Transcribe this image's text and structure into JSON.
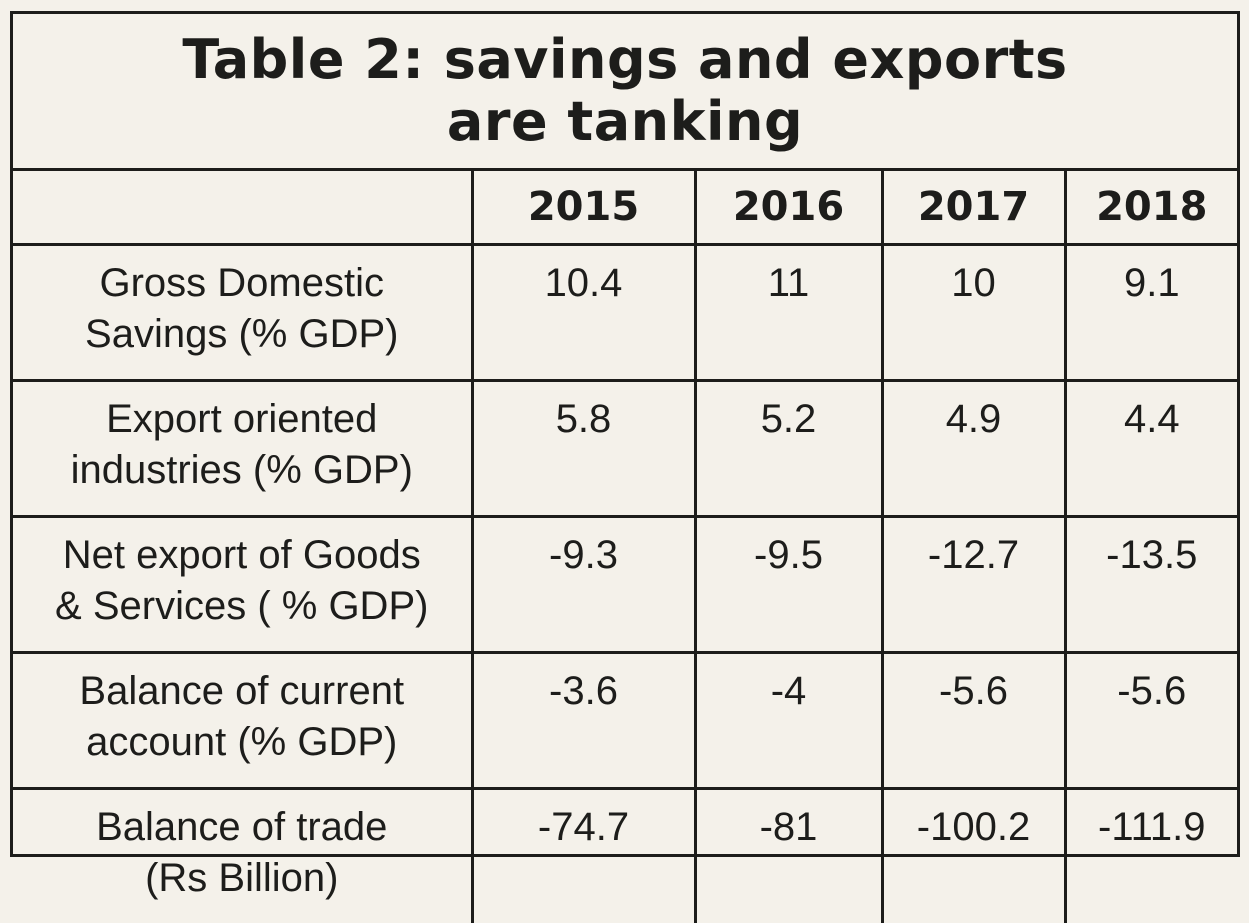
{
  "chart_data": {
    "type": "table",
    "title_lines": [
      "Table 2: savings and exports",
      "are tanking"
    ],
    "columns": [
      "",
      "2015",
      "2016",
      "2017",
      "2018"
    ],
    "rows": [
      {
        "label_lines": [
          "Gross Domestic",
          "Savings (% GDP)"
        ],
        "values": [
          "10.4",
          "11",
          "10",
          "9.1"
        ]
      },
      {
        "label_lines": [
          "Export oriented",
          "industries (% GDP)"
        ],
        "values": [
          "5.8",
          "5.2",
          "4.9",
          "4.4"
        ]
      },
      {
        "label_lines": [
          "Net export of Goods",
          "& Services ( % GDP)"
        ],
        "values": [
          "-9.3",
          "-9.5",
          "-12.7",
          "-13.5"
        ]
      },
      {
        "label_lines": [
          "Balance of current",
          "account (% GDP)"
        ],
        "values": [
          "-3.6",
          "-4",
          "-5.6",
          "-5.6"
        ]
      },
      {
        "label_lines": [
          "Balance of trade",
          "(Rs Billion)"
        ],
        "values": [
          "-74.7",
          "-81",
          "-100.2",
          "-111.9"
        ]
      }
    ]
  }
}
